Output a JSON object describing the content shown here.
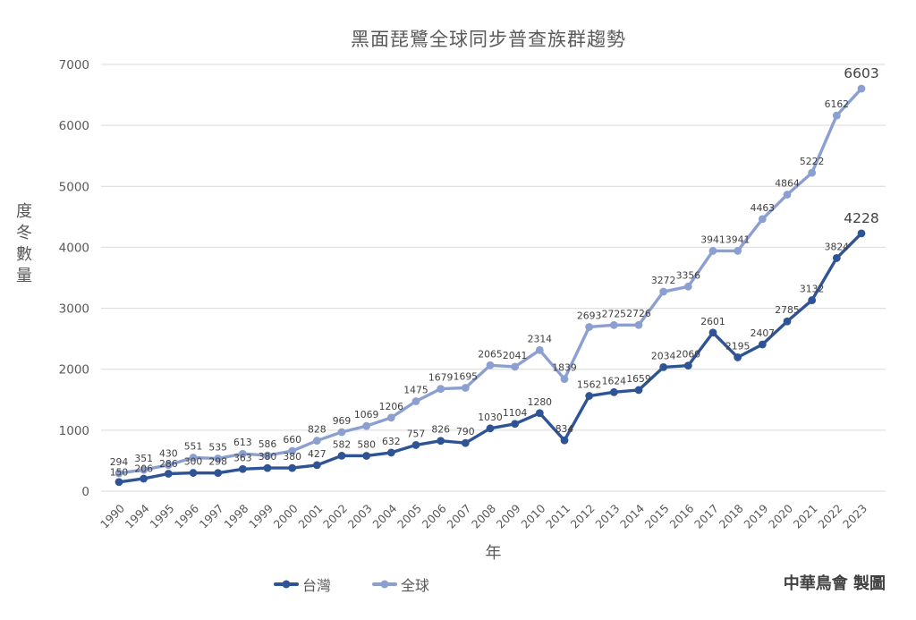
{
  "title": "黑面琵鷺全球同步普查族群趨勢",
  "attribution": "中華鳥會 製圖",
  "colors": {
    "grid": "#d9d9d9",
    "tick_text": "#595959",
    "data_label": "#404040",
    "taiwan_series": "#2F5496",
    "global_series": "#8B9FD1"
  },
  "chart_data": {
    "type": "line",
    "title": "黑面琵鷺全球同步普查族群趨勢",
    "xlabel": "年",
    "ylabel": "度冬數量",
    "ylim": [
      0,
      7000
    ],
    "yticks": [
      0,
      1000,
      2000,
      3000,
      4000,
      5000,
      6000,
      7000
    ],
    "grid": true,
    "legend_position": "bottom",
    "categories": [
      "1990",
      "1994",
      "1995",
      "1996",
      "1997",
      "1998",
      "1999",
      "2000",
      "2001",
      "2002",
      "2003",
      "2004",
      "2005",
      "2006",
      "2007",
      "2008",
      "2009",
      "2010",
      "2011",
      "2012",
      "2013",
      "2014",
      "2015",
      "2016",
      "2017",
      "2018",
      "2019",
      "2020",
      "2021",
      "2022",
      "2023"
    ],
    "series": [
      {
        "name": "台灣",
        "color": "#2F5496",
        "values": [
          150,
          206,
          286,
          300,
          298,
          363,
          380,
          380,
          427,
          582,
          580,
          632,
          757,
          826,
          790,
          1030,
          1104,
          1280,
          834,
          1562,
          1624,
          1659,
          2034,
          2060,
          2601,
          2195,
          2407,
          2785,
          3132,
          3824,
          4228
        ]
      },
      {
        "name": "全球",
        "color": "#8B9FD1",
        "values": [
          294,
          351,
          430,
          551,
          535,
          613,
          586,
          660,
          828,
          969,
          1069,
          1206,
          1475,
          1679,
          1695,
          2065,
          2041,
          2314,
          1839,
          2693,
          2725,
          2726,
          3272,
          3356,
          3941,
          3941,
          4463,
          4864,
          5222,
          6162,
          6603
        ]
      }
    ]
  }
}
